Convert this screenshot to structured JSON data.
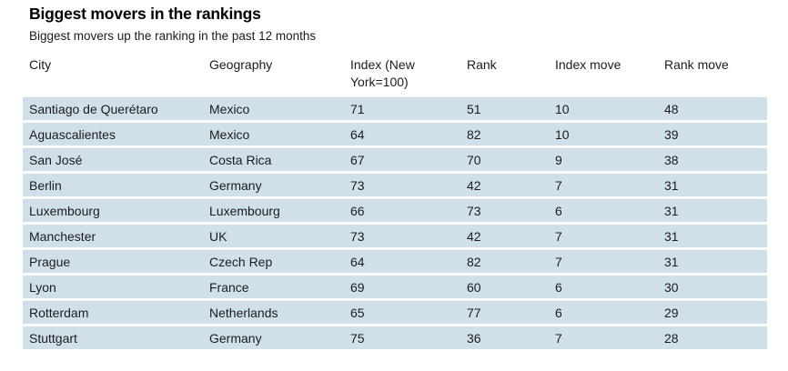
{
  "chart_data": {
    "type": "table",
    "title": "Biggest movers in the rankings",
    "subtitle": "Biggest movers up the ranking in the past 12 months",
    "columns": [
      "City",
      "Geography",
      "Index (New York=100)",
      "Rank",
      "Index move",
      "Rank move"
    ],
    "rows": [
      [
        "Santiago de Querétaro",
        "Mexico",
        71,
        51,
        10,
        48
      ],
      [
        "Aguascalientes",
        "Mexico",
        64,
        82,
        10,
        39
      ],
      [
        "San José",
        "Costa Rica",
        67,
        70,
        9,
        38
      ],
      [
        "Berlin",
        "Germany",
        73,
        42,
        7,
        31
      ],
      [
        "Luxembourg",
        "Luxembourg",
        66,
        73,
        6,
        31
      ],
      [
        "Manchester",
        "UK",
        73,
        42,
        7,
        31
      ],
      [
        "Prague",
        "Czech Rep",
        64,
        82,
        7,
        31
      ],
      [
        "Lyon",
        "France",
        69,
        60,
        6,
        30
      ],
      [
        "Rotterdam",
        "Netherlands",
        65,
        77,
        6,
        29
      ],
      [
        "Stuttgart",
        "Germany",
        75,
        36,
        7,
        28
      ]
    ],
    "legend_position": "none",
    "grid": "row-stripes"
  },
  "colors": {
    "row_background": "#d0e0ea",
    "text": "#1c1c1c",
    "title_text": "#000000",
    "page_background": "#ffffff"
  }
}
